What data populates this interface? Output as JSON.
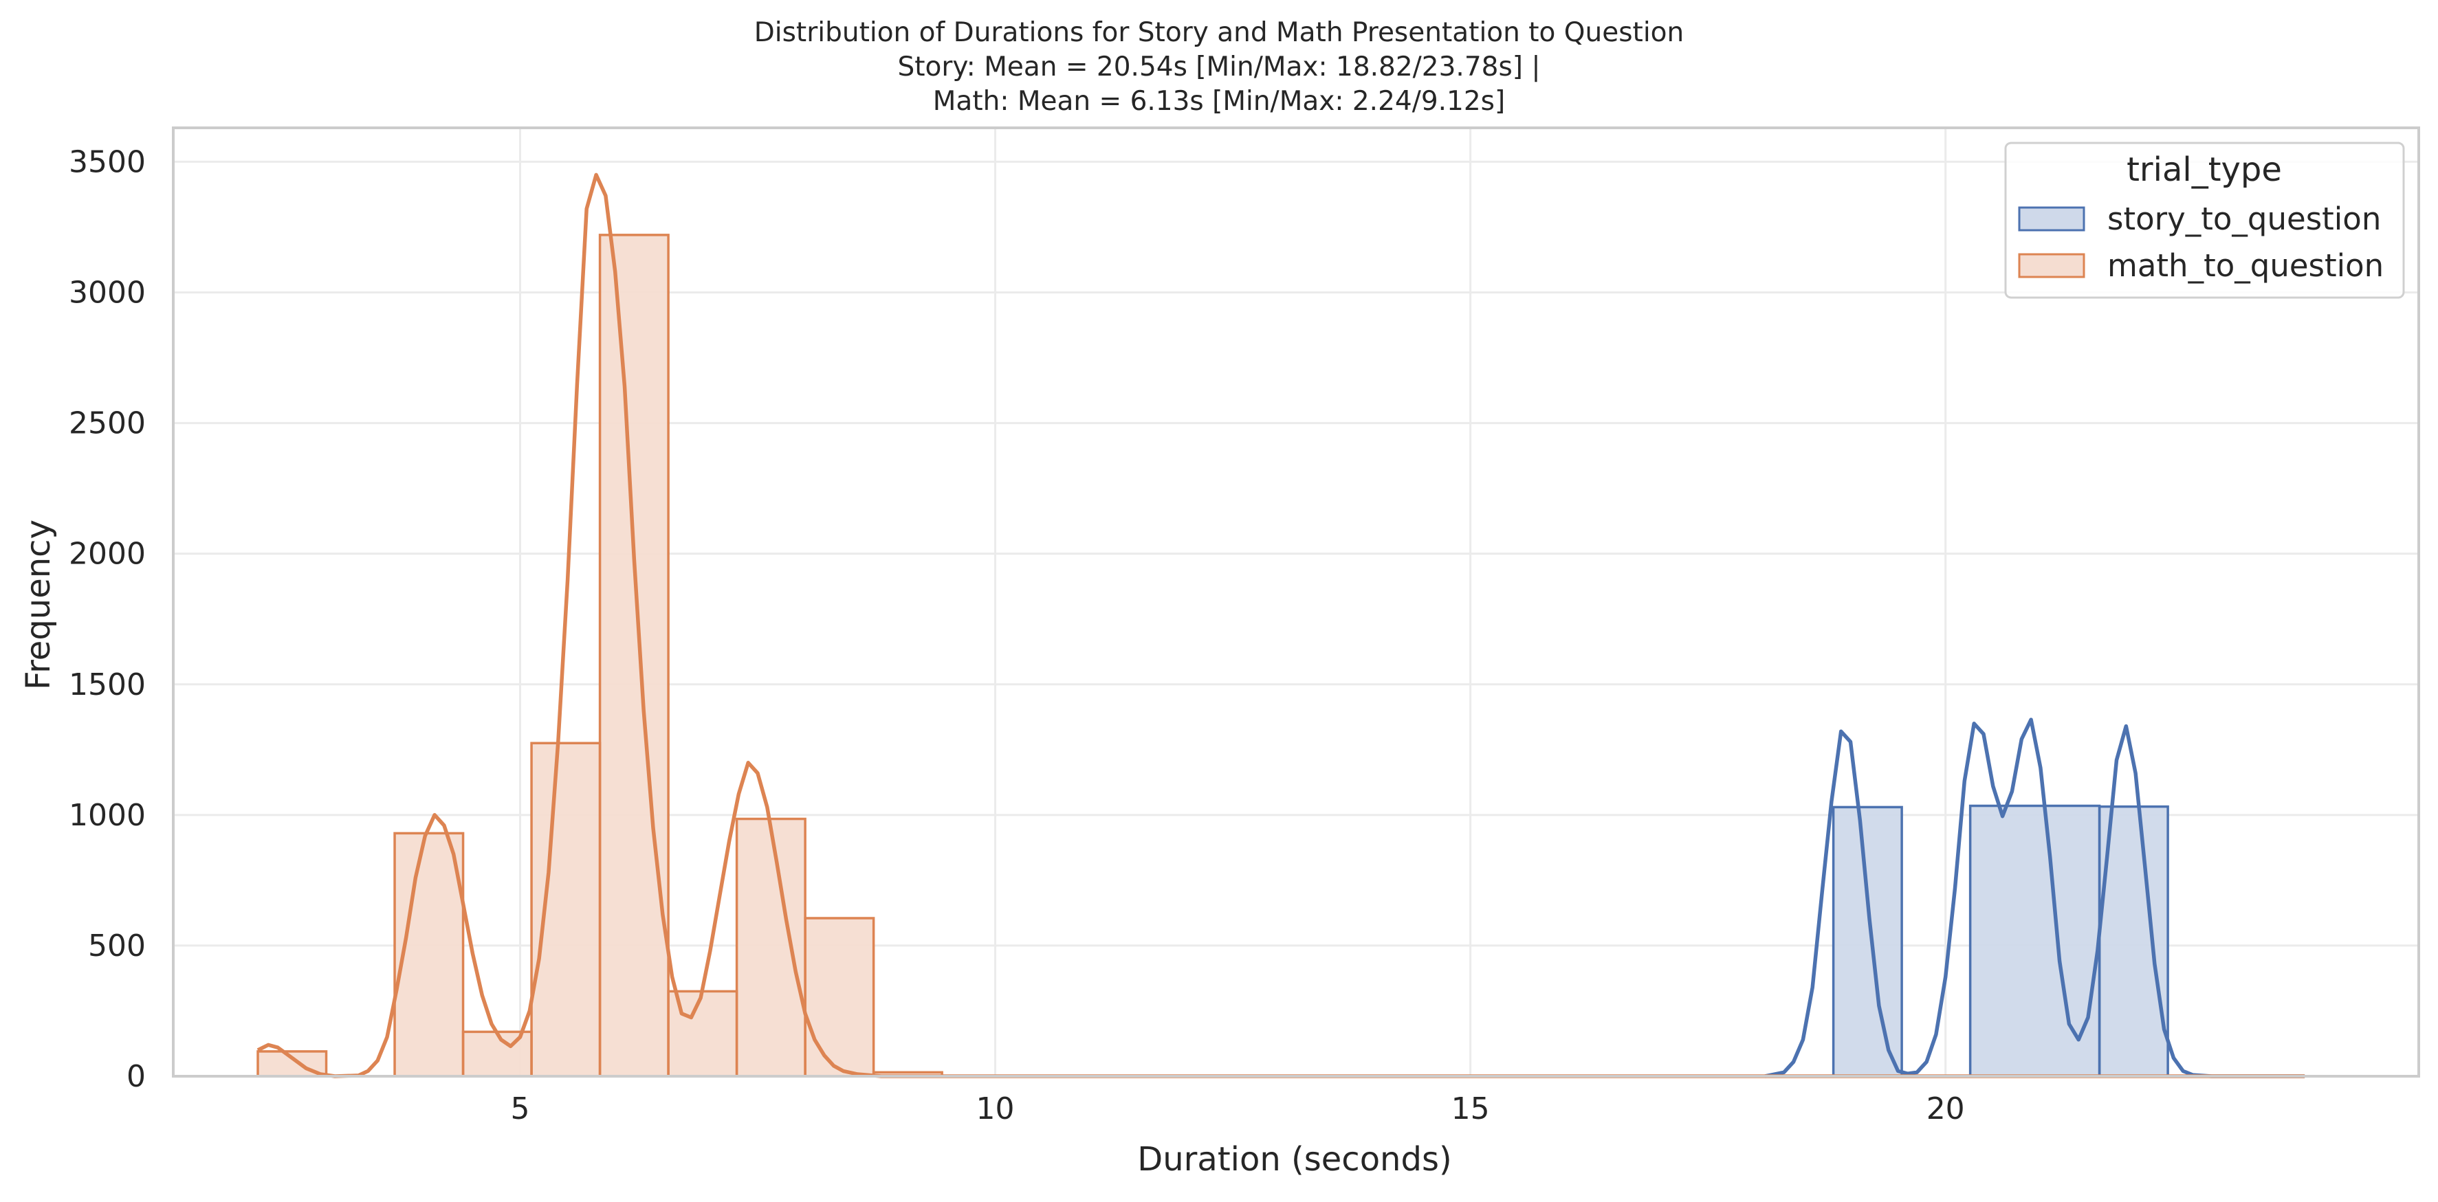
{
  "chart_data": {
    "type": "histogram",
    "title_lines": [
      "Distribution of Durations for Story and Math Presentation to Question",
      "Story: Mean = 20.54s [Min/Max: 18.82/23.78s] |",
      "Math: Mean = 6.13s [Min/Max: 2.24/9.12s]"
    ],
    "xlabel": "Duration (seconds)",
    "ylabel": "Frequency",
    "xlim": [
      1.35,
      24.98
    ],
    "ylim": [
      0,
      3630
    ],
    "x_ticks": [
      5,
      10,
      15,
      20
    ],
    "x_tick_labels": [
      "5",
      "10",
      "15",
      "20"
    ],
    "y_ticks": [
      0,
      500,
      1000,
      1500,
      2000,
      2500,
      3000,
      3500
    ],
    "y_tick_labels": [
      "0",
      "500",
      "1000",
      "1500",
      "2000",
      "2500",
      "3000",
      "3500"
    ],
    "grid": true,
    "legend": {
      "title": "trial_type",
      "placement": "top-right"
    },
    "series": [
      {
        "name": "story_to_question",
        "color": "#4c72b0",
        "fill": "#cfd9ea",
        "bins": [
          {
            "x0": 2.24,
            "x1": 18.82,
            "y": 0
          },
          {
            "x0": 18.82,
            "x1": 19.54,
            "y": 1030
          },
          {
            "x0": 19.54,
            "x1": 20.26,
            "y": 0
          },
          {
            "x0": 20.26,
            "x1": 21.62,
            "y": 1035
          },
          {
            "x0": 21.62,
            "x1": 22.34,
            "y": 1032
          },
          {
            "x0": 22.34,
            "x1": 23.78,
            "y": 0
          }
        ],
        "kde": [
          [
            18.1,
            0
          ],
          [
            18.3,
            15
          ],
          [
            18.4,
            55
          ],
          [
            18.5,
            140
          ],
          [
            18.6,
            340
          ],
          [
            18.7,
            700
          ],
          [
            18.8,
            1050
          ],
          [
            18.9,
            1320
          ],
          [
            19.0,
            1280
          ],
          [
            19.1,
            980
          ],
          [
            19.2,
            600
          ],
          [
            19.3,
            270
          ],
          [
            19.4,
            100
          ],
          [
            19.5,
            20
          ],
          [
            19.6,
            10
          ],
          [
            19.7,
            15
          ],
          [
            19.8,
            55
          ],
          [
            19.9,
            160
          ],
          [
            20.0,
            380
          ],
          [
            20.1,
            720
          ],
          [
            20.2,
            1130
          ],
          [
            20.3,
            1350
          ],
          [
            20.4,
            1310
          ],
          [
            20.5,
            1110
          ],
          [
            20.6,
            995
          ],
          [
            20.7,
            1090
          ],
          [
            20.8,
            1290
          ],
          [
            20.9,
            1365
          ],
          [
            21.0,
            1180
          ],
          [
            21.1,
            840
          ],
          [
            21.2,
            440
          ],
          [
            21.3,
            200
          ],
          [
            21.4,
            140
          ],
          [
            21.5,
            225
          ],
          [
            21.6,
            480
          ],
          [
            21.7,
            840
          ],
          [
            21.8,
            1210
          ],
          [
            21.9,
            1340
          ],
          [
            22.0,
            1160
          ],
          [
            22.1,
            800
          ],
          [
            22.2,
            430
          ],
          [
            22.3,
            180
          ],
          [
            22.4,
            70
          ],
          [
            22.5,
            20
          ],
          [
            22.6,
            5
          ],
          [
            22.8,
            0
          ],
          [
            23.78,
            0
          ]
        ]
      },
      {
        "name": "math_to_question",
        "color": "#dd8452",
        "fill": "#f5ddd1",
        "bins": [
          {
            "x0": 2.24,
            "x1": 2.96,
            "y": 95
          },
          {
            "x0": 2.96,
            "x1": 3.68,
            "y": 0
          },
          {
            "x0": 3.68,
            "x1": 4.4,
            "y": 930
          },
          {
            "x0": 4.4,
            "x1": 5.12,
            "y": 170
          },
          {
            "x0": 5.12,
            "x1": 5.84,
            "y": 1275
          },
          {
            "x0": 5.84,
            "x1": 6.56,
            "y": 3220
          },
          {
            "x0": 6.56,
            "x1": 7.28,
            "y": 325
          },
          {
            "x0": 7.28,
            "x1": 8.0,
            "y": 985
          },
          {
            "x0": 8.0,
            "x1": 8.72,
            "y": 605
          },
          {
            "x0": 8.72,
            "x1": 9.44,
            "y": 15
          }
        ],
        "kde": [
          [
            2.24,
            100
          ],
          [
            2.35,
            120
          ],
          [
            2.45,
            110
          ],
          [
            2.6,
            70
          ],
          [
            2.75,
            30
          ],
          [
            2.9,
            8
          ],
          [
            3.05,
            0
          ],
          [
            3.3,
            3
          ],
          [
            3.4,
            20
          ],
          [
            3.5,
            60
          ],
          [
            3.6,
            150
          ],
          [
            3.7,
            330
          ],
          [
            3.8,
            530
          ],
          [
            3.9,
            760
          ],
          [
            4.0,
            920
          ],
          [
            4.1,
            1000
          ],
          [
            4.2,
            960
          ],
          [
            4.3,
            850
          ],
          [
            4.4,
            660
          ],
          [
            4.5,
            470
          ],
          [
            4.6,
            310
          ],
          [
            4.7,
            200
          ],
          [
            4.8,
            140
          ],
          [
            4.9,
            115
          ],
          [
            5.0,
            150
          ],
          [
            5.1,
            250
          ],
          [
            5.2,
            450
          ],
          [
            5.3,
            780
          ],
          [
            5.4,
            1280
          ],
          [
            5.5,
            1900
          ],
          [
            5.6,
            2650
          ],
          [
            5.7,
            3320
          ],
          [
            5.8,
            3450
          ],
          [
            5.9,
            3370
          ],
          [
            6.0,
            3080
          ],
          [
            6.1,
            2640
          ],
          [
            6.2,
            1980
          ],
          [
            6.3,
            1400
          ],
          [
            6.4,
            950
          ],
          [
            6.5,
            620
          ],
          [
            6.6,
            380
          ],
          [
            6.7,
            240
          ],
          [
            6.8,
            225
          ],
          [
            6.9,
            300
          ],
          [
            7.0,
            480
          ],
          [
            7.1,
            690
          ],
          [
            7.2,
            900
          ],
          [
            7.3,
            1080
          ],
          [
            7.4,
            1200
          ],
          [
            7.5,
            1160
          ],
          [
            7.6,
            1030
          ],
          [
            7.7,
            820
          ],
          [
            7.8,
            600
          ],
          [
            7.9,
            400
          ],
          [
            8.0,
            240
          ],
          [
            8.1,
            140
          ],
          [
            8.2,
            80
          ],
          [
            8.3,
            40
          ],
          [
            8.4,
            20
          ],
          [
            8.55,
            8
          ],
          [
            8.8,
            0
          ],
          [
            23.78,
            0
          ]
        ]
      }
    ]
  }
}
